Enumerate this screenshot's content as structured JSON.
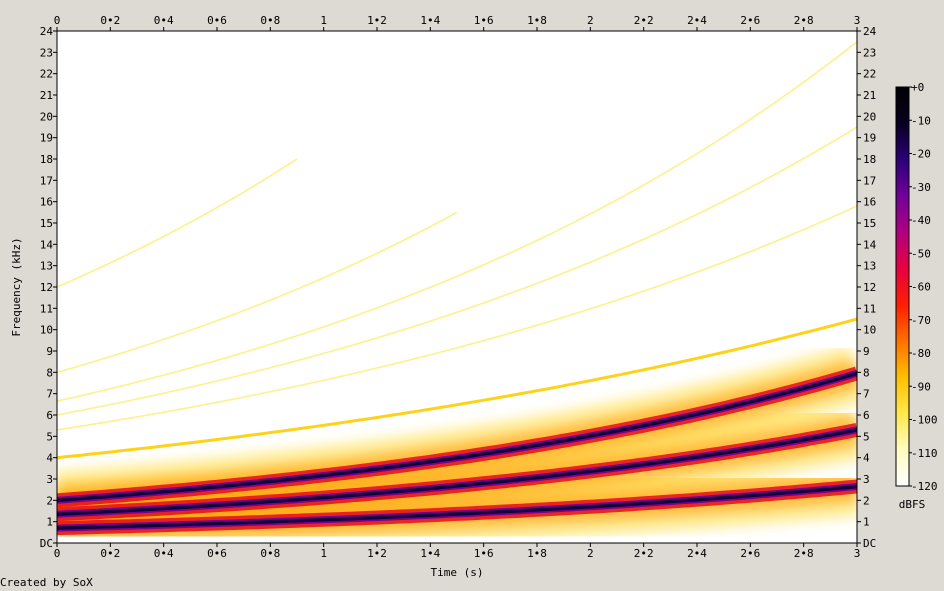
{
  "credit": "Created by SoX",
  "chart_data": {
    "type": "heatmap",
    "subtype": "spectrogram",
    "xlabel": "Time (s)",
    "ylabel": "Frequency (kHz)",
    "xlim": [
      0,
      3
    ],
    "ylim": [
      0,
      24
    ],
    "x_ticks": [
      "0",
      "0•2",
      "0•4",
      "0•6",
      "0•8",
      "1",
      "1•2",
      "1•4",
      "1•6",
      "1•8",
      "2",
      "2•2",
      "2•4",
      "2•6",
      "2•8",
      "3"
    ],
    "y_ticks": [
      "DC",
      "1",
      "2",
      "3",
      "4",
      "5",
      "6",
      "7",
      "8",
      "9",
      "10",
      "11",
      "12",
      "13",
      "14",
      "15",
      "16",
      "17",
      "18",
      "19",
      "20",
      "21",
      "22",
      "23",
      "24"
    ],
    "colorbar": {
      "label": "dBFS",
      "ticks": [
        "+0",
        "-10",
        "-20",
        "-30",
        "-40",
        "-50",
        "-60",
        "-70",
        "-80",
        "-90",
        "-100",
        "-110",
        "-120"
      ],
      "range_db": [
        -120,
        0
      ],
      "colors": [
        "#ffffff",
        "#fffcc0",
        "#ffe84a",
        "#ffc000",
        "#ff7000",
        "#ff1e00",
        "#e80040",
        "#b00080",
        "#700098",
        "#2a0078",
        "#080020",
        "#000000"
      ]
    },
    "series": [
      {
        "name": "",
        "kind": "strong",
        "values": [
          {
            "t": 0,
            "f": 0.7
          },
          {
            "t": 3,
            "f": 2.65
          }
        ]
      },
      {
        "name": "",
        "kind": "strong",
        "values": [
          {
            "t": 0,
            "f": 1.35
          },
          {
            "t": 3,
            "f": 5.3
          }
        ]
      },
      {
        "name": "",
        "kind": "strong",
        "values": [
          {
            "t": 0,
            "f": 2.0
          },
          {
            "t": 3,
            "f": 7.95
          }
        ]
      },
      {
        "name": "",
        "kind": "weak",
        "values": [
          {
            "t": 0,
            "f": 4.0
          },
          {
            "t": 3,
            "f": 10.5
          }
        ]
      },
      {
        "name": "",
        "kind": "weak",
        "values": [
          {
            "t": 0,
            "f": 5.3
          },
          {
            "t": 3,
            "f": 15.8
          }
        ]
      },
      {
        "name": "",
        "kind": "weak",
        "values": [
          {
            "t": 0,
            "f": 6.0
          },
          {
            "t": 3,
            "f": 19.5
          }
        ]
      },
      {
        "name": "",
        "kind": "weak",
        "values": [
          {
            "t": 0,
            "f": 6.65
          },
          {
            "t": 3,
            "f": 23.5
          }
        ]
      },
      {
        "name": "",
        "kind": "weak",
        "values": [
          {
            "t": 0,
            "f": 8.0
          },
          {
            "t": 1.5,
            "f": 15.5
          }
        ]
      },
      {
        "name": "",
        "kind": "weak",
        "values": [
          {
            "t": 0,
            "f": 12.0
          },
          {
            "t": 0.9,
            "f": 18.0
          }
        ]
      }
    ]
  }
}
